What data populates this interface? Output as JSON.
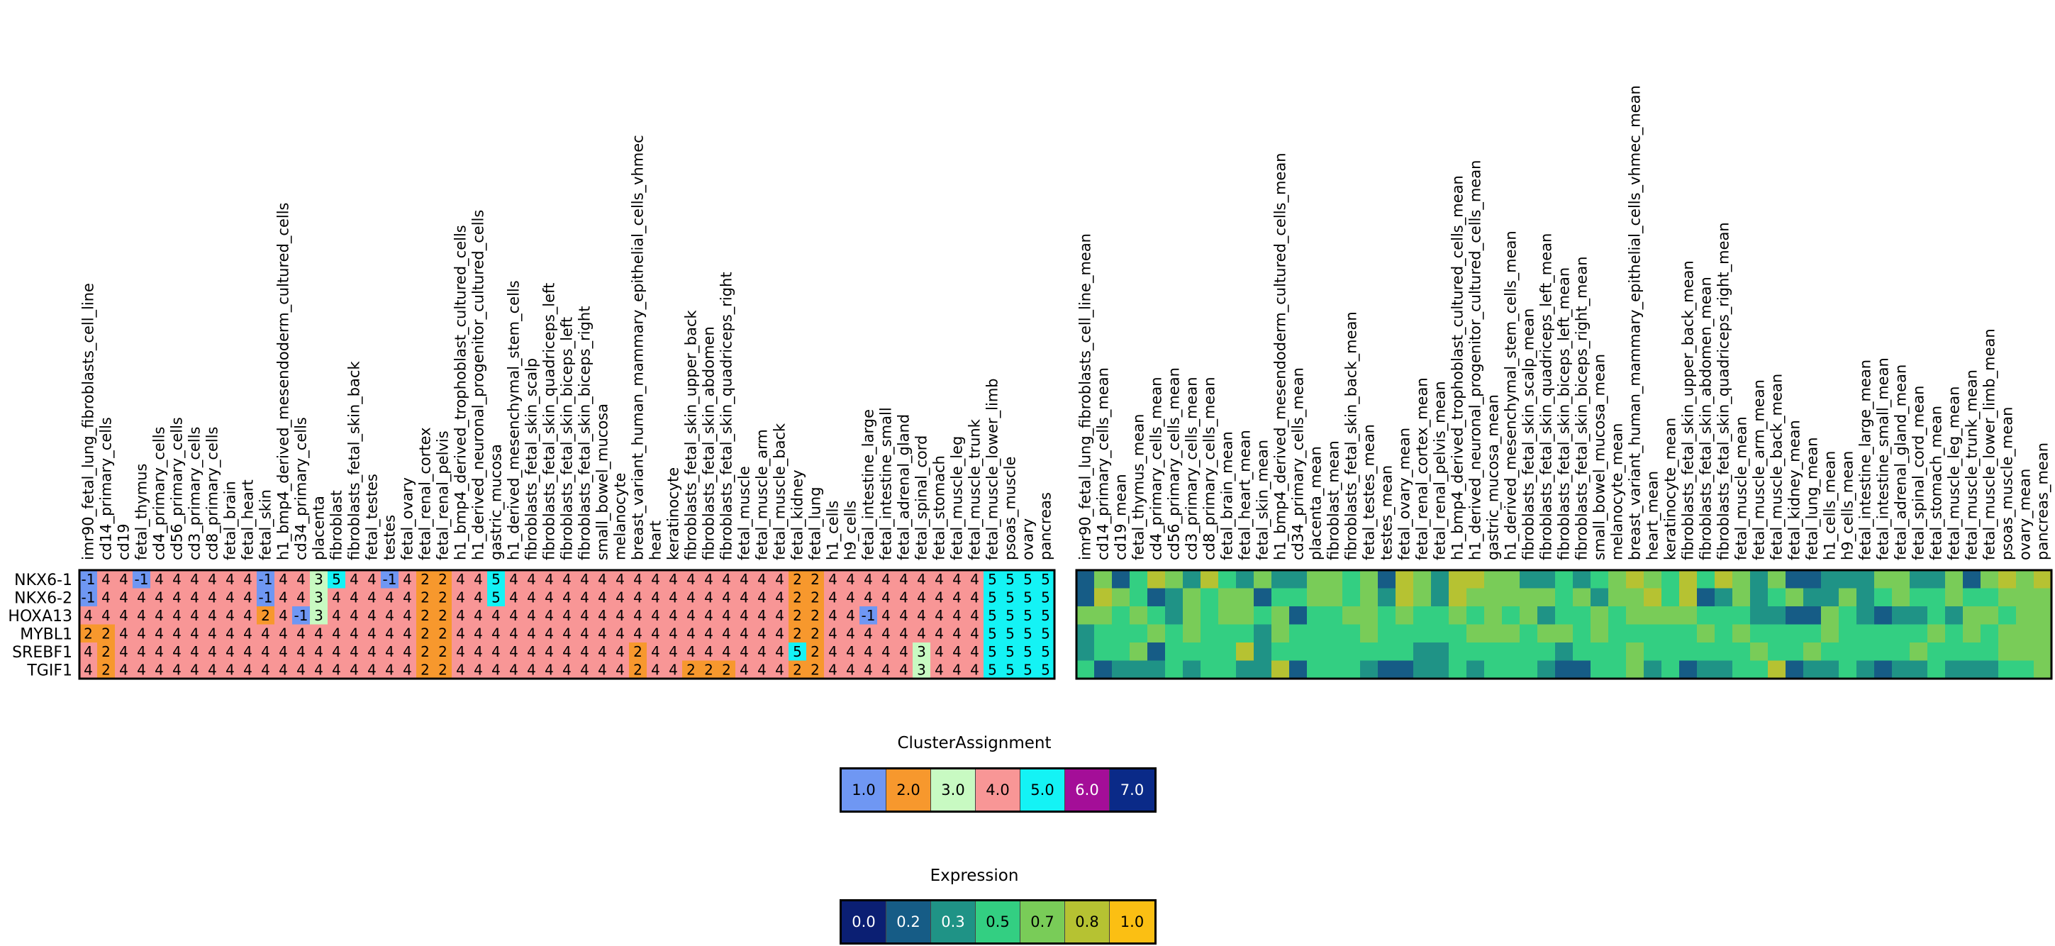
{
  "chart_data": [
    {
      "type": "heatmap",
      "title": "",
      "role": "cluster_assignment",
      "genes": [
        "NKX6-1",
        "NKX6-2",
        "HOXA13",
        "MYBL1",
        "SREBF1",
        "TGIF1"
      ],
      "samples": [
        "imr90_fetal_lung_fibroblasts_cell_line",
        "cd14_primary_cells",
        "cd19",
        "fetal_thymus",
        "cd4_primary_cells",
        "cd56_primary_cells",
        "cd3_primary_cells",
        "cd8_primary_cells",
        "fetal_brain",
        "fetal_heart",
        "fetal_skin",
        "h1_bmp4_derived_mesendoderm_cultured_cells",
        "cd34_primary_cells",
        "placenta",
        "fibroblast",
        "fibroblasts_fetal_skin_back",
        "fetal_testes",
        "testes",
        "fetal_ovary",
        "fetal_renal_cortex",
        "fetal_renal_pelvis",
        "h1_bmp4_derived_trophoblast_cultured_cells",
        "h1_derived_neuronal_progenitor_cultured_cells",
        "gastric_mucosa",
        "h1_derived_mesenchymal_stem_cells",
        "fibroblasts_fetal_skin_scalp",
        "fibroblasts_fetal_skin_quadriceps_left",
        "fibroblasts_fetal_skin_biceps_left",
        "fibroblasts_fetal_skin_biceps_right",
        "small_bowel_mucosa",
        "melanocyte",
        "breast_variant_human_mammary_epithelial_cells_vhmec",
        "heart",
        "keratinocyte",
        "fibroblasts_fetal_skin_upper_back",
        "fibroblasts_fetal_skin_abdomen",
        "fibroblasts_fetal_skin_quadriceps_right",
        "fetal_muscle",
        "fetal_muscle_arm",
        "fetal_muscle_back",
        "fetal_kidney",
        "fetal_lung",
        "h1_cells",
        "h9_cells",
        "fetal_intestine_large",
        "fetal_intestine_small",
        "fetal_adrenal_gland",
        "fetal_spinal_cord",
        "fetal_stomach",
        "fetal_muscle_leg",
        "fetal_muscle_trunk",
        "fetal_muscle_lower_limb",
        "psoas_muscle",
        "ovary",
        "pancreas"
      ],
      "values": [
        [
          -1,
          4,
          4,
          -1,
          4,
          4,
          4,
          4,
          4,
          4,
          -1,
          4,
          4,
          3,
          5,
          4,
          4,
          -1,
          4,
          2,
          2,
          4,
          4,
          5,
          4,
          4,
          4,
          4,
          4,
          4,
          4,
          4,
          4,
          4,
          4,
          4,
          4,
          4,
          4,
          4,
          2,
          2,
          4,
          4,
          4,
          4,
          4,
          4,
          4,
          4,
          4,
          5,
          5,
          5,
          5
        ],
        [
          -1,
          4,
          4,
          4,
          4,
          4,
          4,
          4,
          4,
          4,
          -1,
          4,
          4,
          3,
          4,
          4,
          4,
          4,
          4,
          2,
          2,
          4,
          4,
          5,
          4,
          4,
          4,
          4,
          4,
          4,
          4,
          4,
          4,
          4,
          4,
          4,
          4,
          4,
          4,
          4,
          2,
          2,
          4,
          4,
          4,
          4,
          4,
          4,
          4,
          4,
          4,
          5,
          5,
          5,
          5
        ],
        [
          4,
          4,
          4,
          4,
          4,
          4,
          4,
          4,
          4,
          4,
          2,
          4,
          -1,
          3,
          4,
          4,
          4,
          4,
          4,
          2,
          2,
          4,
          4,
          4,
          4,
          4,
          4,
          4,
          4,
          4,
          4,
          4,
          4,
          4,
          4,
          4,
          4,
          4,
          4,
          4,
          2,
          2,
          4,
          4,
          -1,
          4,
          4,
          4,
          4,
          4,
          4,
          5,
          5,
          5,
          5
        ],
        [
          2,
          2,
          4,
          4,
          4,
          4,
          4,
          4,
          4,
          4,
          4,
          4,
          4,
          4,
          4,
          4,
          4,
          4,
          4,
          2,
          2,
          4,
          4,
          4,
          4,
          4,
          4,
          4,
          4,
          4,
          4,
          4,
          4,
          4,
          4,
          4,
          4,
          4,
          4,
          4,
          2,
          2,
          4,
          4,
          4,
          4,
          4,
          4,
          4,
          4,
          4,
          5,
          5,
          5,
          5
        ],
        [
          4,
          2,
          4,
          4,
          4,
          4,
          4,
          4,
          4,
          4,
          4,
          4,
          4,
          4,
          4,
          4,
          4,
          4,
          4,
          2,
          2,
          4,
          4,
          4,
          4,
          4,
          4,
          4,
          4,
          4,
          4,
          2,
          4,
          4,
          4,
          4,
          4,
          4,
          4,
          4,
          5,
          2,
          4,
          4,
          4,
          4,
          4,
          3,
          4,
          4,
          4,
          5,
          5,
          5,
          5
        ],
        [
          4,
          2,
          4,
          4,
          4,
          4,
          4,
          4,
          4,
          4,
          4,
          4,
          4,
          4,
          4,
          4,
          4,
          4,
          4,
          2,
          2,
          4,
          4,
          4,
          4,
          4,
          4,
          4,
          4,
          4,
          4,
          2,
          4,
          4,
          2,
          2,
          2,
          4,
          4,
          4,
          2,
          2,
          4,
          4,
          4,
          4,
          4,
          3,
          4,
          4,
          4,
          5,
          5,
          5,
          5
        ]
      ]
    },
    {
      "type": "heatmap",
      "title": "",
      "role": "mean_expression",
      "genes": [
        "NKX6-1",
        "NKX6-2",
        "HOXA13",
        "MYBL1",
        "SREBF1",
        "TGIF1"
      ],
      "samples": [
        "imr90_fetal_lung_fibroblasts_cell_line_mean",
        "cd14_primary_cells_mean",
        "cd19_mean",
        "fetal_thymus_mean",
        "cd4_primary_cells_mean",
        "cd56_primary_cells_mean",
        "cd3_primary_cells_mean",
        "cd8_primary_cells_mean",
        "fetal_brain_mean",
        "fetal_heart_mean",
        "fetal_skin_mean",
        "h1_bmp4_derived_mesendoderm_cultured_cells_mean",
        "cd34_primary_cells_mean",
        "placenta_mean",
        "fibroblast_mean",
        "fibroblasts_fetal_skin_back_mean",
        "fetal_testes_mean",
        "testes_mean",
        "fetal_ovary_mean",
        "fetal_renal_cortex_mean",
        "fetal_renal_pelvis_mean",
        "h1_bmp4_derived_trophoblast_cultured_cells_mean",
        "h1_derived_neuronal_progenitor_cultured_cells_mean",
        "gastric_mucosa_mean",
        "h1_derived_mesenchymal_stem_cells_mean",
        "fibroblasts_fetal_skin_scalp_mean",
        "fibroblasts_fetal_skin_quadriceps_left_mean",
        "fibroblasts_fetal_skin_biceps_left_mean",
        "fibroblasts_fetal_skin_biceps_right_mean",
        "small_bowel_mucosa_mean",
        "melanocyte_mean",
        "breast_variant_human_mammary_epithelial_cells_vhmec_mean",
        "heart_mean",
        "keratinocyte_mean",
        "fibroblasts_fetal_skin_upper_back_mean",
        "fibroblasts_fetal_skin_abdomen_mean",
        "fibroblasts_fetal_skin_quadriceps_right_mean",
        "fetal_muscle_mean",
        "fetal_muscle_arm_mean",
        "fetal_muscle_back_mean",
        "fetal_kidney_mean",
        "fetal_lung_mean",
        "h1_cells_mean",
        "h9_cells_mean",
        "fetal_intestine_large_mean",
        "fetal_intestine_small_mean",
        "fetal_adrenal_gland_mean",
        "fetal_spinal_cord_mean",
        "fetal_stomach_mean",
        "fetal_muscle_leg_mean",
        "fetal_muscle_trunk_mean",
        "fetal_muscle_lower_limb_mean",
        "psoas_muscle_mean",
        "ovary_mean",
        "pancreas_mean"
      ],
      "values": [
        [
          0.2,
          0.7,
          0.1,
          0.5,
          0.8,
          0.7,
          0.3,
          0.8,
          0.5,
          0.3,
          0.7,
          0.3,
          0.3,
          0.7,
          0.7,
          0.5,
          0.7,
          0.1,
          0.8,
          0.6,
          0.4,
          0.8,
          0.8,
          0.7,
          0.7,
          0.4,
          0.3,
          0.5,
          0.3,
          0.5,
          0.7,
          0.8,
          0.7,
          0.5,
          0.8,
          0.5,
          0.8,
          0.6,
          0.3,
          0.7,
          0.2,
          0.2,
          0.4,
          0.3,
          0.3,
          0.6,
          0.6,
          0.3,
          0.4,
          0.6,
          0.2,
          0.6,
          0.8,
          0.7,
          0.8
        ],
        [
          0.1,
          0.8,
          0.7,
          0.5,
          0.1,
          0.3,
          0.6,
          0.5,
          0.7,
          0.7,
          0.1,
          0.5,
          0.5,
          0.6,
          0.7,
          0.5,
          0.7,
          0.4,
          0.8,
          0.6,
          0.4,
          0.8,
          0.6,
          0.6,
          0.6,
          0.6,
          0.6,
          0.5,
          0.6,
          0.3,
          0.6,
          0.6,
          0.8,
          0.5,
          0.8,
          0.1,
          0.3,
          0.6,
          0.3,
          0.5,
          0.6,
          0.3,
          0.3,
          0.6,
          0.3,
          0.5,
          0.6,
          0.5,
          0.5,
          0.7,
          0.5,
          0.5,
          0.6,
          0.7,
          0.7
        ],
        [
          0.7,
          0.7,
          0.5,
          0.7,
          0.5,
          0.3,
          0.6,
          0.5,
          0.7,
          0.7,
          0.5,
          0.7,
          0.1,
          0.5,
          0.5,
          0.7,
          0.7,
          0.5,
          0.7,
          0.5,
          0.5,
          0.7,
          0.5,
          0.6,
          0.5,
          0.6,
          0.3,
          0.5,
          0.5,
          0.6,
          0.5,
          0.6,
          0.7,
          0.6,
          0.7,
          0.5,
          0.5,
          0.5,
          0.3,
          0.3,
          0.1,
          0.1,
          0.6,
          0.5,
          0.3,
          0.1,
          0.3,
          0.3,
          0.5,
          0.3,
          0.6,
          0.6,
          0.5,
          0.7,
          0.7
        ],
        [
          0.3,
          0.5,
          0.5,
          0.5,
          0.6,
          0.5,
          0.6,
          0.5,
          0.5,
          0.5,
          0.3,
          0.7,
          0.5,
          0.5,
          0.5,
          0.5,
          0.6,
          0.5,
          0.5,
          0.5,
          0.5,
          0.5,
          0.6,
          0.6,
          0.6,
          0.5,
          0.6,
          0.6,
          0.5,
          0.6,
          0.5,
          0.5,
          0.5,
          0.5,
          0.5,
          0.6,
          0.5,
          0.6,
          0.5,
          0.5,
          0.5,
          0.5,
          0.6,
          0.5,
          0.5,
          0.5,
          0.5,
          0.5,
          0.6,
          0.5,
          0.6,
          0.5,
          0.6,
          0.7,
          0.7
        ],
        [
          0.3,
          0.5,
          0.5,
          0.6,
          0.1,
          0.5,
          0.5,
          0.5,
          0.5,
          0.8,
          0.3,
          0.5,
          0.5,
          0.5,
          0.5,
          0.5,
          0.5,
          0.5,
          0.5,
          0.3,
          0.3,
          0.5,
          0.5,
          0.5,
          0.5,
          0.5,
          0.5,
          0.3,
          0.5,
          0.5,
          0.5,
          0.7,
          0.5,
          0.5,
          0.5,
          0.5,
          0.5,
          0.5,
          0.7,
          0.5,
          0.5,
          0.7,
          0.5,
          0.5,
          0.5,
          0.5,
          0.5,
          0.7,
          0.5,
          0.5,
          0.5,
          0.5,
          0.6,
          0.7,
          0.7
        ],
        [
          0.5,
          0.2,
          0.3,
          0.3,
          0.3,
          0.5,
          0.3,
          0.5,
          0.5,
          0.3,
          0.3,
          0.8,
          0.2,
          0.5,
          0.5,
          0.5,
          0.3,
          0.2,
          0.2,
          0.3,
          0.3,
          0.5,
          0.3,
          0.5,
          0.5,
          0.5,
          0.3,
          0.2,
          0.1,
          0.5,
          0.5,
          0.7,
          0.3,
          0.5,
          0.2,
          0.3,
          0.3,
          0.5,
          0.5,
          0.8,
          0.1,
          0.3,
          0.3,
          0.5,
          0.3,
          0.2,
          0.3,
          0.3,
          0.5,
          0.3,
          0.3,
          0.3,
          0.5,
          0.5,
          0.7
        ]
      ]
    }
  ],
  "legends": {
    "cluster": {
      "title": "ClusterAssignment",
      "items": [
        {
          "label": "1.0",
          "color": "#6f97f3"
        },
        {
          "label": "2.0",
          "color": "#f7982d"
        },
        {
          "label": "3.0",
          "color": "#c8fac2"
        },
        {
          "label": "4.0",
          "color": "#f89696"
        },
        {
          "label": "5.0",
          "color": "#14f3f5"
        },
        {
          "label": "6.0",
          "color": "#a40e98"
        },
        {
          "label": "7.0",
          "color": "#0a2a88"
        }
      ]
    },
    "expression": {
      "title": "Expression",
      "items": [
        {
          "label": "0.0",
          "color": "#0b1f73"
        },
        {
          "label": "0.2",
          "color": "#165c86"
        },
        {
          "label": "0.3",
          "color": "#1f9386"
        },
        {
          "label": "0.5",
          "color": "#33cf82"
        },
        {
          "label": "0.7",
          "color": "#79cc58"
        },
        {
          "label": "0.8",
          "color": "#b6c232"
        },
        {
          "label": "1.0",
          "color": "#fbbf13"
        }
      ]
    }
  },
  "cluster_colors": {
    "-1": "#6f97f3",
    "1": "#6f97f3",
    "2": "#f7982d",
    "3": "#c8fac2",
    "4": "#f89696",
    "5": "#14f3f5",
    "6": "#a40e98",
    "7": "#0a2a88"
  },
  "expr_scale": [
    "#0b1f73",
    "#165c86",
    "#1f9386",
    "#33cf82",
    "#79cc58",
    "#b6c232",
    "#fbbf13"
  ]
}
